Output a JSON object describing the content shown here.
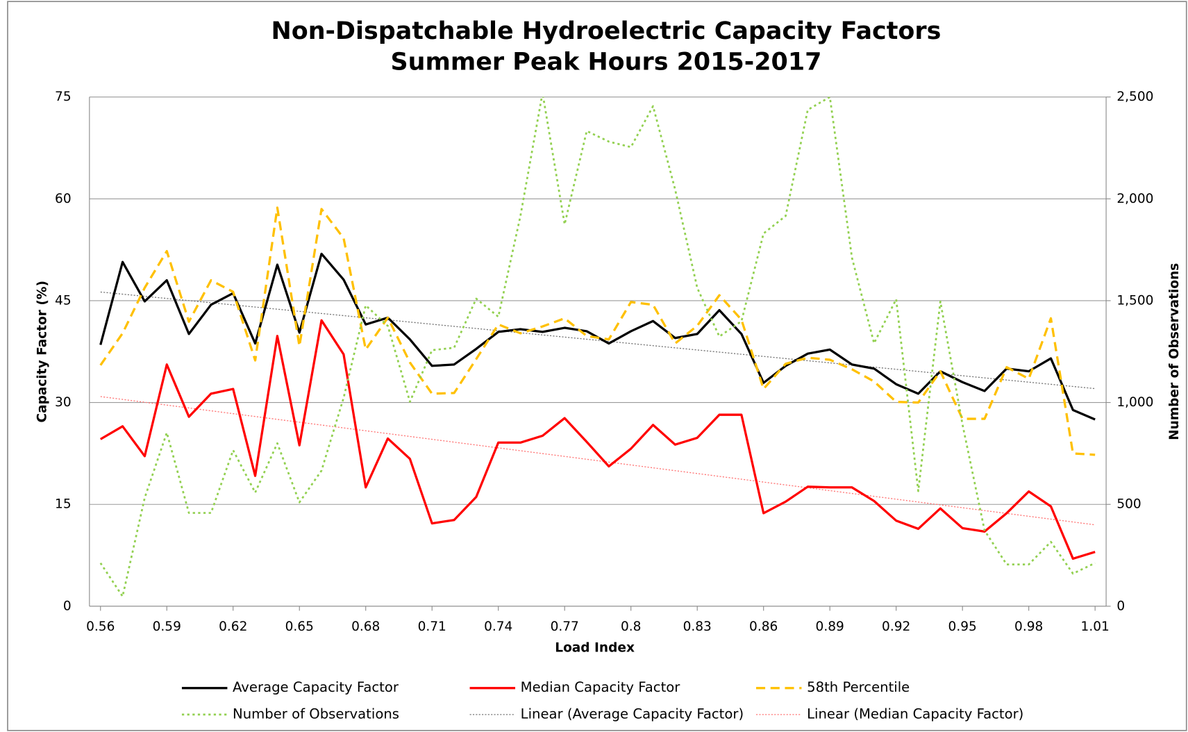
{
  "chart_data": {
    "type": "line",
    "title": "Non-Dispatchable Hydroelectric Capacity Factors",
    "subtitle": "Summer Peak Hours 2015-2017",
    "x_label": "Load Index",
    "y_label": "Capacity Factor (%)",
    "y2_label": "Number of Observations",
    "x": [
      0.56,
      0.57,
      0.58,
      0.59,
      0.6,
      0.61,
      0.62,
      0.63,
      0.64,
      0.65,
      0.66,
      0.67,
      0.68,
      0.69,
      0.7,
      0.71,
      0.72,
      0.73,
      0.74,
      0.75,
      0.76,
      0.77,
      0.78,
      0.79,
      0.8,
      0.81,
      0.82,
      0.83,
      0.84,
      0.85,
      0.86,
      0.87,
      0.88,
      0.89,
      0.9,
      0.91,
      0.92,
      0.93,
      0.94,
      0.95,
      0.96,
      0.97,
      0.98,
      0.99,
      1.0,
      1.01
    ],
    "xlim": [
      0.555,
      1.015
    ],
    "xticks": [
      0.56,
      0.59,
      0.62,
      0.65,
      0.68,
      0.71,
      0.74,
      0.77,
      0.8,
      0.83,
      0.86,
      0.89,
      0.92,
      0.95,
      0.98,
      1.01
    ],
    "ylim": [
      0,
      75
    ],
    "yticks": [
      0,
      15,
      30,
      45,
      60,
      75
    ],
    "y2lim": [
      0,
      2500
    ],
    "y2ticks": [
      0,
      500,
      {
        "value": 1000,
        "label": "1,000"
      },
      {
        "value": 1500,
        "label": "1,500"
      },
      {
        "value": 2000,
        "label": "2,000"
      },
      {
        "value": 2500,
        "label": "2,500"
      }
    ],
    "grid": true,
    "legend": "bottom",
    "series": [
      {
        "name": "Average Capacity Factor",
        "color": "#000000",
        "dash": "solid",
        "trendline": {
          "name": "Linear (Average Capacity Factor)",
          "color": "#777777"
        },
        "values": [
          38.5,
          50.7,
          44.9,
          48.0,
          40.1,
          44.4,
          46.1,
          38.7,
          50.3,
          40.3,
          51.9,
          48.1,
          41.5,
          42.5,
          39.3,
          35.4,
          35.6,
          37.9,
          40.4,
          40.8,
          40.4,
          41.0,
          40.5,
          38.7,
          40.5,
          42.0,
          39.5,
          40.1,
          43.6,
          40.1,
          32.9,
          35.4,
          37.2,
          37.8,
          35.6,
          35.0,
          32.7,
          31.3,
          34.6,
          33.0,
          31.7,
          35.0,
          34.6,
          36.5,
          28.9,
          27.5
        ]
      },
      {
        "name": "Median Capacity Factor",
        "color": "#ff0000",
        "dash": "solid",
        "trendline": {
          "name": "Linear (Median Capacity Factor)",
          "color": "#ff7777"
        },
        "values": [
          24.6,
          26.5,
          22.1,
          35.6,
          27.9,
          31.3,
          32.0,
          19.2,
          39.8,
          23.7,
          42.1,
          37.1,
          17.5,
          24.7,
          21.7,
          12.2,
          12.7,
          16.1,
          24.1,
          24.1,
          25.1,
          27.7,
          24.2,
          20.6,
          23.2,
          26.7,
          23.8,
          24.8,
          28.2,
          28.2,
          13.7,
          15.4,
          17.6,
          17.5,
          17.5,
          15.5,
          12.6,
          11.4,
          14.4,
          11.5,
          11.0,
          13.7,
          16.9,
          14.7,
          7.0,
          8.0
        ]
      },
      {
        "name": "58th Percentile",
        "color": "#ffc000",
        "dash": "dashed",
        "values": [
          35.5,
          40.2,
          46.9,
          52.3,
          41.9,
          48.0,
          46.3,
          36.2,
          58.7,
          38.3,
          58.5,
          54.2,
          37.8,
          42.5,
          35.9,
          31.3,
          31.4,
          36.4,
          41.5,
          40.2,
          41.2,
          42.4,
          39.8,
          39.3,
          44.8,
          44.4,
          38.7,
          41.3,
          45.8,
          42.2,
          32.0,
          35.7,
          36.6,
          36.3,
          34.9,
          33.1,
          30.1,
          30.0,
          34.6,
          27.6,
          27.6,
          35.2,
          33.5,
          42.4,
          22.5,
          22.3
        ]
      },
      {
        "name": "Number of Observations",
        "color": "#92d050",
        "dash": "dotted",
        "axis": "y2",
        "values": [
          212,
          48,
          532,
          852,
          458,
          458,
          766,
          558,
          800,
          510,
          666,
          1023,
          1477,
          1376,
          1004,
          1257,
          1269,
          1510,
          1421,
          1916,
          2520,
          1875,
          2333,
          2281,
          2254,
          2455,
          2046,
          1563,
          1324,
          1399,
          1830,
          1916,
          2437,
          2500,
          1711,
          1291,
          1507,
          565,
          1496,
          893,
          372,
          205,
          205,
          316,
          160,
          212
        ]
      }
    ]
  }
}
